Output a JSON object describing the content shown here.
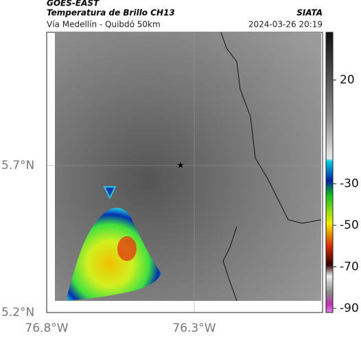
{
  "header": {
    "satellite": "GOES-EAST",
    "product": "Temperatura de Brillo CH13",
    "location": "Vía Medellín - Quibdó 50km",
    "source": "SIATA",
    "datetime": "2024-03-26 20:19"
  },
  "map": {
    "lat_labels": [
      "5.7°N",
      "5.2°N"
    ],
    "lon_labels": [
      "76.8°W",
      "76.3°W"
    ]
  },
  "colorbar": {
    "lim": [
      -92,
      43
    ],
    "ticks": [
      20,
      -30,
      -50,
      -70,
      -90
    ]
  }
}
